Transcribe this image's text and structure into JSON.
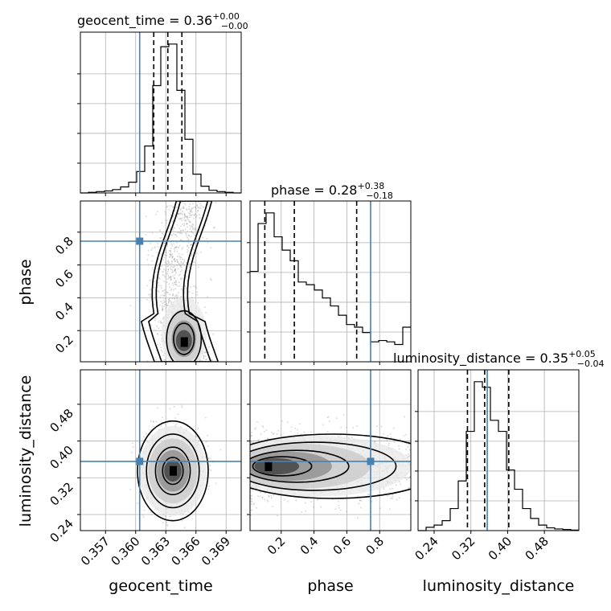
{
  "chart_data": {
    "type": "corner",
    "parameters": [
      {
        "key": "geocent_time",
        "label": "geocent_time",
        "title_main": "geocent_time = 0.36",
        "title_sup": "+0.00",
        "title_sub": "−0.00",
        "range": [
          0.3545,
          0.3705
        ],
        "ticks": [
          "0.357",
          "0.360",
          "0.363",
          "0.366",
          "0.369"
        ],
        "tick_values": [
          0.357,
          0.36,
          0.363,
          0.366,
          0.369
        ],
        "truth": 0.3604,
        "quantiles": [
          0.3618,
          0.3632,
          0.3646
        ],
        "hist_edges": [
          0.3545,
          0.3553,
          0.3561,
          0.3569,
          0.3577,
          0.3585,
          0.3593,
          0.3601,
          0.3609,
          0.3617,
          0.3625,
          0.3633,
          0.3641,
          0.3649,
          0.3657,
          0.3665,
          0.3673,
          0.3681,
          0.3689,
          0.3697,
          0.3705
        ],
        "hist_counts": [
          0,
          1,
          2,
          3,
          5,
          9,
          16,
          32,
          70,
          160,
          218,
          222,
          153,
          80,
          28,
          10,
          4,
          2,
          1,
          0
        ]
      },
      {
        "key": "phase",
        "label": "phase",
        "title_main": "phase = 0.28",
        "title_sup": "+0.38",
        "title_sub": "−0.18",
        "range": [
          0.01,
          0.99
        ],
        "ticks": [
          "0.2",
          "0.4",
          "0.6",
          "0.8"
        ],
        "tick_values": [
          0.2,
          0.4,
          0.6,
          0.8
        ],
        "truth": 0.745,
        "quantiles": [
          0.1,
          0.28,
          0.66
        ],
        "hist_edges": [
          0.01,
          0.059,
          0.108,
          0.157,
          0.206,
          0.255,
          0.304,
          0.353,
          0.402,
          0.451,
          0.5,
          0.549,
          0.598,
          0.647,
          0.696,
          0.745,
          0.794,
          0.843,
          0.892,
          0.941,
          0.99
        ],
        "hist_counts": [
          340,
          520,
          560,
          470,
          420,
          380,
          300,
          290,
          270,
          240,
          210,
          175,
          140,
          130,
          110,
          75,
          80,
          75,
          65,
          130
        ]
      },
      {
        "key": "luminosity_distance",
        "label": "luminosity_distance",
        "title_main": "luminosity_distance = 0.35",
        "title_sup": "+0.05",
        "title_sub": "−0.04",
        "range": [
          0.205,
          0.555
        ],
        "ticks": [
          "0.24",
          "0.32",
          "0.40",
          "0.48"
        ],
        "tick_values": [
          0.24,
          0.32,
          0.4,
          0.48
        ],
        "truth": 0.3556,
        "quantiles": [
          0.3125,
          0.35,
          0.4025
        ],
        "hist_edges": [
          0.205,
          0.2225,
          0.24,
          0.2575,
          0.275,
          0.2925,
          0.31,
          0.3275,
          0.345,
          0.3625,
          0.38,
          0.3975,
          0.415,
          0.4325,
          0.45,
          0.4675,
          0.485,
          0.5025,
          0.52,
          0.5375,
          0.555
        ],
        "hist_counts": [
          0,
          6,
          10,
          18,
          40,
          90,
          180,
          270,
          260,
          200,
          180,
          110,
          75,
          40,
          22,
          10,
          5,
          3,
          2,
          1
        ]
      }
    ],
    "pairs": [
      {
        "x": "geocent_time",
        "y": "phase",
        "truth": [
          0.3604,
          0.745
        ],
        "peak": [
          0.3648,
          0.13
        ]
      },
      {
        "x": "geocent_time",
        "y": "luminosity_distance",
        "truth": [
          0.3604,
          0.3556
        ],
        "peak": [
          0.3637,
          0.335
        ]
      },
      {
        "x": "phase",
        "y": "luminosity_distance",
        "truth": [
          0.745,
          0.3556
        ],
        "peak": [
          0.12,
          0.345
        ]
      }
    ],
    "truth_color": "#4682b4",
    "grid": true
  }
}
